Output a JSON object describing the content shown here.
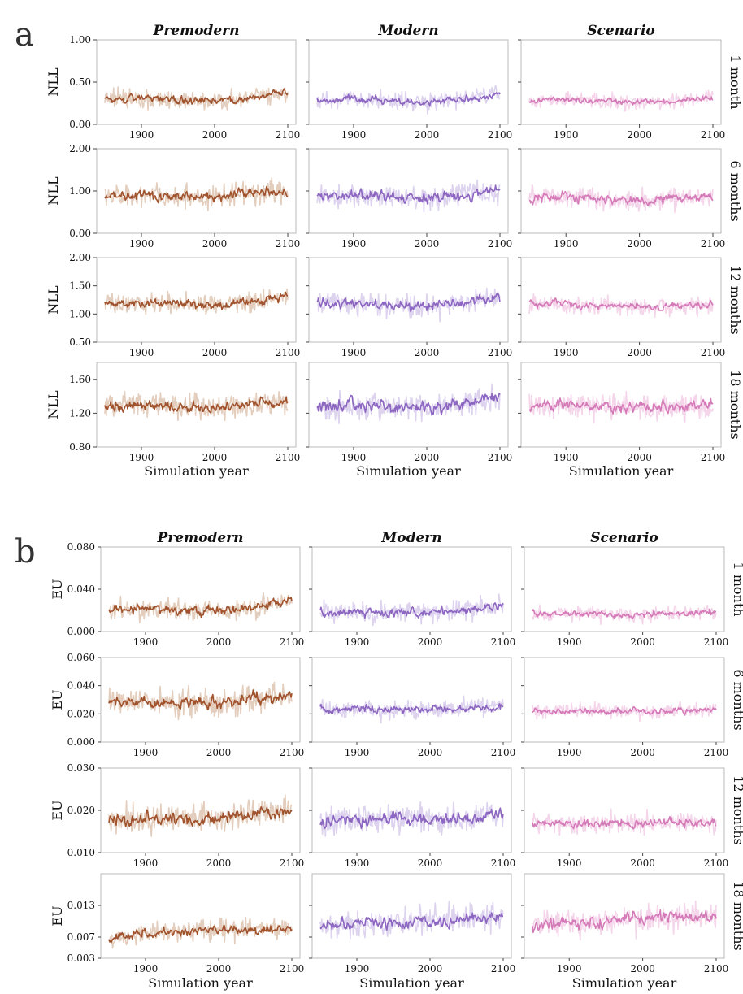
{
  "figure": {
    "panels": [
      {
        "letter": "a",
        "columns": [
          "Premodern",
          "Modern",
          "Scenario"
        ],
        "ylabel": "NLL",
        "xlabel": "Simulation year",
        "row_labels": [
          "1 month",
          "6 months",
          "12 months",
          "18 months"
        ]
      },
      {
        "letter": "b",
        "columns": [
          "Premodern",
          "Modern",
          "Scenario"
        ],
        "ylabel": "EU",
        "xlabel": "Simulation year",
        "row_labels": [
          "1 month",
          "6 months",
          "12 months",
          "18 months"
        ]
      }
    ]
  },
  "colors": {
    "premodern": "#a0522d",
    "premodern_band": "#e3cdbd",
    "modern": "#8c66c0",
    "modern_band": "#ddd3ef",
    "scenario": "#d57ab8",
    "scenario_band": "#f4d5ea"
  },
  "chart_data": [
    {
      "panel": "a",
      "row": "1 month",
      "type": "line",
      "x_ticks": [
        "1900",
        "2000",
        "2100"
      ],
      "x_range": [
        1850,
        2100
      ],
      "ylabel": "NLL",
      "ylim": [
        0.0,
        1.0
      ],
      "y_ticks": [
        "0.00",
        "0.50",
        "1.00"
      ],
      "series": [
        {
          "column": "Premodern",
          "color": "#a0522d",
          "x": [
            1850,
            1900,
            1950,
            2000,
            2050,
            2100
          ],
          "mean": [
            0.3,
            0.3,
            0.29,
            0.27,
            0.31,
            0.38
          ],
          "band": [
            0.15,
            0.5
          ]
        },
        {
          "column": "Modern",
          "color": "#8c66c0",
          "x": [
            1850,
            1900,
            1950,
            2000,
            2050,
            2100
          ],
          "mean": [
            0.28,
            0.3,
            0.28,
            0.26,
            0.3,
            0.36
          ],
          "band": [
            0.14,
            0.5
          ]
        },
        {
          "column": "Scenario",
          "color": "#d57ab8",
          "x": [
            1850,
            1900,
            1950,
            2000,
            2050,
            2100
          ],
          "mean": [
            0.28,
            0.29,
            0.28,
            0.25,
            0.28,
            0.32
          ],
          "band": [
            0.14,
            0.45
          ]
        }
      ]
    },
    {
      "panel": "a",
      "row": "6 months",
      "type": "line",
      "x_ticks": [
        "1900",
        "2000",
        "2100"
      ],
      "x_range": [
        1850,
        2100
      ],
      "ylabel": "NLL",
      "ylim": [
        0.0,
        2.0
      ],
      "y_ticks": [
        "0.00",
        "1.00",
        "2.00"
      ],
      "series": [
        {
          "column": "Premodern",
          "color": "#a0522d",
          "x": [
            1850,
            1900,
            1950,
            2000,
            2050,
            2100
          ],
          "mean": [
            0.9,
            0.9,
            0.88,
            0.85,
            0.95,
            1.0
          ],
          "band": [
            0.45,
            1.45
          ]
        },
        {
          "column": "Modern",
          "color": "#8c66c0",
          "x": [
            1850,
            1900,
            1950,
            2000,
            2050,
            2100
          ],
          "mean": [
            0.88,
            0.9,
            0.85,
            0.82,
            0.9,
            1.0
          ],
          "band": [
            0.4,
            1.45
          ]
        },
        {
          "column": "Scenario",
          "color": "#d57ab8",
          "x": [
            1850,
            1900,
            1950,
            2000,
            2050,
            2100
          ],
          "mean": [
            0.85,
            0.88,
            0.82,
            0.78,
            0.82,
            0.85
          ],
          "band": [
            0.4,
            1.3
          ]
        }
      ]
    },
    {
      "panel": "a",
      "row": "12 months",
      "type": "line",
      "x_ticks": [
        "1900",
        "2000",
        "2100"
      ],
      "x_range": [
        1850,
        2100
      ],
      "ylabel": "NLL",
      "ylim": [
        0.5,
        2.0
      ],
      "y_ticks": [
        "0.50",
        "1.00",
        "1.50",
        "2.00"
      ],
      "series": [
        {
          "column": "Premodern",
          "color": "#a0522d",
          "x": [
            1850,
            1900,
            1950,
            2000,
            2050,
            2100
          ],
          "mean": [
            1.2,
            1.2,
            1.18,
            1.15,
            1.22,
            1.32
          ],
          "band": [
            0.9,
            1.55
          ]
        },
        {
          "column": "Modern",
          "color": "#8c66c0",
          "x": [
            1850,
            1900,
            1950,
            2000,
            2050,
            2100
          ],
          "mean": [
            1.2,
            1.18,
            1.15,
            1.12,
            1.2,
            1.3
          ],
          "band": [
            0.9,
            1.6
          ]
        },
        {
          "column": "Scenario",
          "color": "#d57ab8",
          "x": [
            1850,
            1900,
            1950,
            2000,
            2050,
            2100
          ],
          "mean": [
            1.18,
            1.18,
            1.15,
            1.12,
            1.15,
            1.15
          ],
          "band": [
            0.9,
            1.45
          ]
        }
      ]
    },
    {
      "panel": "a",
      "row": "18 months",
      "type": "line",
      "x_ticks": [
        "1900",
        "2000",
        "2100"
      ],
      "x_range": [
        1850,
        2100
      ],
      "ylabel": "NLL",
      "ylim": [
        0.8,
        1.8
      ],
      "y_ticks": [
        "0.80",
        "1.20",
        "1.60"
      ],
      "series": [
        {
          "column": "Premodern",
          "color": "#a0522d",
          "x": [
            1850,
            1900,
            1950,
            2000,
            2050,
            2100
          ],
          "mean": [
            1.28,
            1.3,
            1.28,
            1.26,
            1.3,
            1.35
          ],
          "band": [
            1.05,
            1.55
          ]
        },
        {
          "column": "Modern",
          "color": "#8c66c0",
          "x": [
            1850,
            1900,
            1950,
            2000,
            2050,
            2100
          ],
          "mean": [
            1.28,
            1.3,
            1.28,
            1.25,
            1.32,
            1.4
          ],
          "band": [
            1.0,
            1.6
          ]
        },
        {
          "column": "Scenario",
          "color": "#d57ab8",
          "x": [
            1850,
            1900,
            1950,
            2000,
            2050,
            2100
          ],
          "mean": [
            1.28,
            1.3,
            1.28,
            1.26,
            1.28,
            1.3
          ],
          "band": [
            1.0,
            1.55
          ]
        }
      ]
    },
    {
      "panel": "b",
      "row": "1 month",
      "type": "line",
      "x_ticks": [
        "1900",
        "2000",
        "2100"
      ],
      "x_range": [
        1850,
        2100
      ],
      "ylabel": "EU",
      "ylim": [
        0.0,
        0.08
      ],
      "y_ticks": [
        "0.000",
        "0.040",
        "0.080"
      ],
      "series": [
        {
          "column": "Premodern",
          "color": "#a0522d",
          "x": [
            1850,
            1900,
            1950,
            2000,
            2050,
            2100
          ],
          "mean": [
            0.021,
            0.021,
            0.02,
            0.02,
            0.023,
            0.03
          ],
          "band": [
            0.008,
            0.045
          ]
        },
        {
          "column": "Modern",
          "color": "#8c66c0",
          "x": [
            1850,
            1900,
            1950,
            2000,
            2050,
            2100
          ],
          "mean": [
            0.018,
            0.019,
            0.018,
            0.018,
            0.02,
            0.025
          ],
          "band": [
            0.006,
            0.04
          ]
        },
        {
          "column": "Scenario",
          "color": "#d57ab8",
          "x": [
            1850,
            1900,
            1950,
            2000,
            2050,
            2100
          ],
          "mean": [
            0.017,
            0.017,
            0.016,
            0.016,
            0.017,
            0.019
          ],
          "band": [
            0.006,
            0.03
          ]
        }
      ]
    },
    {
      "panel": "b",
      "row": "6 months",
      "type": "line",
      "x_ticks": [
        "1900",
        "2000",
        "2100"
      ],
      "x_range": [
        1850,
        2100
      ],
      "ylabel": "EU",
      "ylim": [
        0.0,
        0.06
      ],
      "y_ticks": [
        "0.000",
        "0.020",
        "0.040",
        "0.060"
      ],
      "series": [
        {
          "column": "Premodern",
          "color": "#a0522d",
          "x": [
            1850,
            1900,
            1950,
            2000,
            2050,
            2100
          ],
          "mean": [
            0.028,
            0.028,
            0.028,
            0.028,
            0.031,
            0.034
          ],
          "band": [
            0.016,
            0.048
          ]
        },
        {
          "column": "Modern",
          "color": "#8c66c0",
          "x": [
            1850,
            1900,
            1950,
            2000,
            2050,
            2100
          ],
          "mean": [
            0.023,
            0.023,
            0.023,
            0.023,
            0.024,
            0.026
          ],
          "band": [
            0.013,
            0.036
          ]
        },
        {
          "column": "Scenario",
          "color": "#d57ab8",
          "x": [
            1850,
            1900,
            1950,
            2000,
            2050,
            2100
          ],
          "mean": [
            0.022,
            0.022,
            0.022,
            0.022,
            0.022,
            0.023
          ],
          "band": [
            0.013,
            0.032
          ]
        }
      ]
    },
    {
      "panel": "b",
      "row": "12 months",
      "type": "line",
      "x_ticks": [
        "1900",
        "2000",
        "2100"
      ],
      "x_range": [
        1850,
        2100
      ],
      "ylabel": "EU",
      "ylim": [
        0.01,
        0.03
      ],
      "y_ticks": [
        "0.010",
        "0.020",
        "0.030"
      ],
      "series": [
        {
          "column": "Premodern",
          "color": "#a0522d",
          "x": [
            1850,
            1900,
            1950,
            2000,
            2050,
            2100
          ],
          "mean": [
            0.018,
            0.018,
            0.018,
            0.018,
            0.019,
            0.02
          ],
          "band": [
            0.013,
            0.025
          ]
        },
        {
          "column": "Modern",
          "color": "#8c66c0",
          "x": [
            1850,
            1900,
            1950,
            2000,
            2050,
            2100
          ],
          "mean": [
            0.017,
            0.018,
            0.018,
            0.018,
            0.018,
            0.019
          ],
          "band": [
            0.013,
            0.025
          ]
        },
        {
          "column": "Scenario",
          "color": "#d57ab8",
          "x": [
            1850,
            1900,
            1950,
            2000,
            2050,
            2100
          ],
          "mean": [
            0.017,
            0.017,
            0.017,
            0.017,
            0.017,
            0.017
          ],
          "band": [
            0.013,
            0.022
          ]
        }
      ]
    },
    {
      "panel": "b",
      "row": "18 months",
      "type": "line",
      "x_ticks": [
        "1900",
        "2000",
        "2100"
      ],
      "x_range": [
        1850,
        2100
      ],
      "ylabel": "EU",
      "ylim": [
        0.003,
        0.019
      ],
      "y_ticks": [
        "0.003",
        "0.007",
        "0.013"
      ],
      "series": [
        {
          "column": "Premodern",
          "color": "#a0522d",
          "x": [
            1850,
            1900,
            1950,
            2000,
            2050,
            2100
          ],
          "mean": [
            0.0065,
            0.008,
            0.008,
            0.0085,
            0.0085,
            0.0085
          ],
          "band": [
            0.005,
            0.012
          ]
        },
        {
          "column": "Modern",
          "color": "#8c66c0",
          "x": [
            1850,
            1900,
            1950,
            2000,
            2050,
            2100
          ],
          "mean": [
            0.009,
            0.0095,
            0.0095,
            0.01,
            0.0105,
            0.011
          ],
          "band": [
            0.006,
            0.015
          ]
        },
        {
          "column": "Scenario",
          "color": "#d57ab8",
          "x": [
            1850,
            1900,
            1950,
            2000,
            2050,
            2100
          ],
          "mean": [
            0.009,
            0.0095,
            0.01,
            0.0105,
            0.011,
            0.011
          ],
          "band": [
            0.006,
            0.016
          ]
        }
      ]
    }
  ]
}
